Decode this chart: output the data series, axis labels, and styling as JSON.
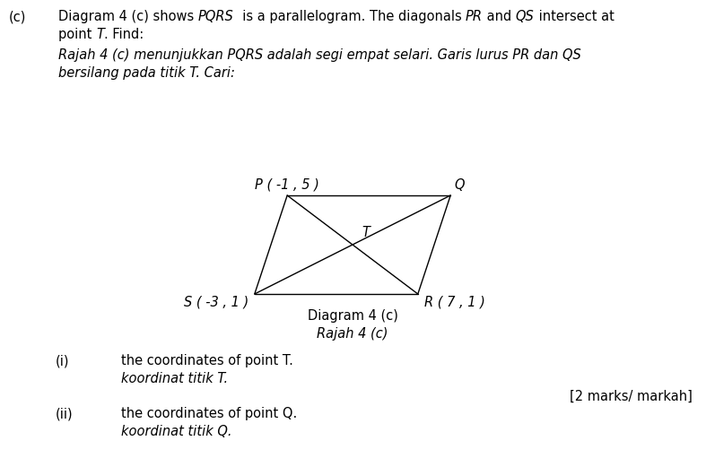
{
  "background_color": "#ffffff",
  "fig_width": 7.87,
  "fig_height": 5.11,
  "dpi": 100,
  "points": {
    "P": [
      -1,
      5
    ],
    "Q": [
      9,
      5
    ],
    "R": [
      7,
      1
    ],
    "S": [
      -3,
      1
    ]
  },
  "label_c": "(c)",
  "header_line1_parts": [
    {
      "text": "Diagram 4 (c) shows ",
      "style": "normal"
    },
    {
      "text": "PQRS",
      "style": "italic"
    },
    {
      "text": "  is a parallelogram. The diagonals ",
      "style": "normal"
    },
    {
      "text": "PR",
      "style": "italic"
    },
    {
      "text": " and ",
      "style": "normal"
    },
    {
      "text": "QS",
      "style": "italic"
    },
    {
      "text": " intersect at",
      "style": "normal"
    }
  ],
  "header_line2_parts": [
    {
      "text": "point ",
      "style": "normal"
    },
    {
      "text": "T",
      "style": "italic"
    },
    {
      "text": ". Find:",
      "style": "normal"
    }
  ],
  "italic_line1": "Rajah 4 (c) menunjukkan PQRS adalah segi empat selari. Garis lurus PR dan QS",
  "italic_line2": "bersilang pada titik T. Cari:",
  "vertex_labels": {
    "P": "P ( -1 , 5 )",
    "Q": "Q",
    "R": "R ( 7 , 1 )",
    "S": "S ( -3 , 1 )",
    "T": "T"
  },
  "diagram_label_line1": "Diagram 4 (c)",
  "diagram_label_line2": "Rajah 4 (c)",
  "item_i_label": "(i)",
  "item_i_text1": "the coordinates of point T.",
  "item_i_text2": "koordinat titik T.",
  "marks_text": "[2 marks/ markah]",
  "item_ii_label": "(ii)",
  "item_ii_text1": "the coordinates of point Q.",
  "item_ii_text2": "koordinat titik Q.",
  "font_size_body": 10.5,
  "line_color": "#000000"
}
